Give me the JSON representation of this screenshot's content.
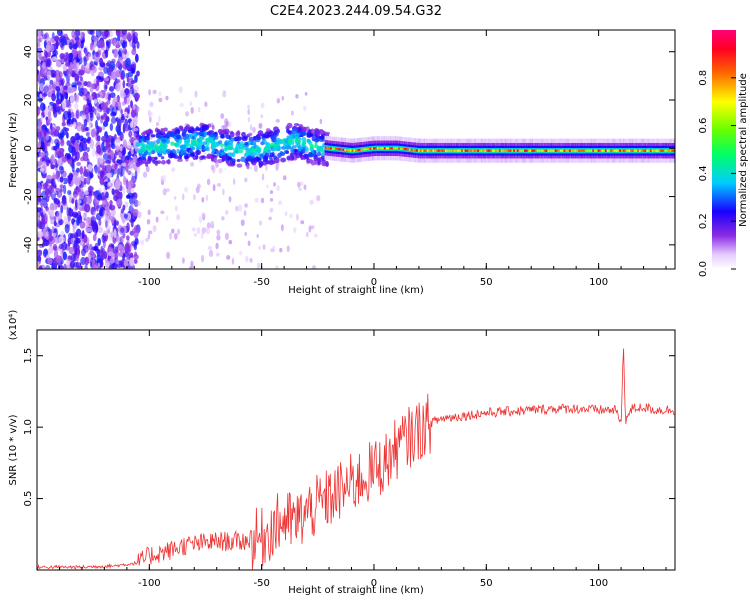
{
  "title": "C2E4.2023.244.09.54.G32",
  "chart_data": [
    {
      "type": "heatmap",
      "xlabel": "Height of straight line (km)",
      "ylabel": "Frequency (Hz)",
      "xlim": [
        -150,
        134
      ],
      "ylim": [
        -50,
        49
      ],
      "xticks": [
        -100,
        -50,
        0,
        50,
        100
      ],
      "yticks": [
        -40,
        -20,
        0,
        20,
        40
      ],
      "ridge": [
        {
          "x": -105,
          "y": 0
        },
        {
          "x": -95,
          "y": 1
        },
        {
          "x": -85,
          "y": 2
        },
        {
          "x": -75,
          "y": 3
        },
        {
          "x": -65,
          "y": 0
        },
        {
          "x": -55,
          "y": -1
        },
        {
          "x": -45,
          "y": 1
        },
        {
          "x": -35,
          "y": 3
        },
        {
          "x": -28,
          "y": 1
        },
        {
          "x": -20,
          "y": 0
        },
        {
          "x": -10,
          "y": -1
        },
        {
          "x": 0,
          "y": 0
        },
        {
          "x": 10,
          "y": 0
        },
        {
          "x": 20,
          "y": -1
        },
        {
          "x": 40,
          "y": -1
        },
        {
          "x": 60,
          "y": -1
        },
        {
          "x": 80,
          "y": -1
        },
        {
          "x": 100,
          "y": -1
        },
        {
          "x": 120,
          "y": -1
        },
        {
          "x": 134,
          "y": -1
        }
      ],
      "colorbar": {
        "label": "Normalized spectral amplitude",
        "ticks": [
          0.0,
          0.2,
          0.4,
          0.6,
          0.8
        ],
        "range": [
          0,
          1
        ]
      }
    },
    {
      "type": "line",
      "xlabel": "Height of straight line (km)",
      "ylabel": "SNR (10 * v/v)",
      "scale_label": "(x10⁴)",
      "xlim": [
        -150,
        134
      ],
      "ylim": [
        0,
        1.68
      ],
      "xticks": [
        -100,
        -50,
        0,
        50,
        100
      ],
      "yticks": [
        0.5,
        1.0,
        1.5
      ],
      "ytick_labels": [
        "0.5",
        "1.0",
        "1.5"
      ],
      "color": "#ee3333",
      "series": [
        {
          "x": [
            -150,
            -130,
            -115,
            -105,
            -100,
            -95,
            -90,
            -85,
            -80,
            -75,
            -70,
            -65,
            -60,
            -55,
            -50,
            -45,
            -40,
            -35,
            -30,
            -25,
            -20,
            -15,
            -10,
            -5,
            0,
            5,
            10,
            15,
            20,
            25,
            30,
            40,
            50,
            60,
            70,
            80,
            90,
            100,
            105,
            108,
            110,
            111,
            112,
            115,
            120,
            125,
            134
          ],
          "y": [
            0.02,
            0.02,
            0.03,
            0.05,
            0.1,
            0.12,
            0.14,
            0.17,
            0.18,
            0.19,
            0.2,
            0.2,
            0.2,
            0.21,
            0.22,
            0.3,
            0.35,
            0.33,
            0.4,
            0.45,
            0.5,
            0.55,
            0.6,
            0.65,
            0.7,
            0.75,
            0.85,
            0.92,
            0.98,
            1.03,
            1.06,
            1.08,
            1.1,
            1.11,
            1.12,
            1.13,
            1.13,
            1.12,
            1.12,
            1.12,
            1.0,
            1.6,
            1.05,
            1.13,
            1.14,
            1.12,
            1.12
          ]
        }
      ]
    }
  ]
}
